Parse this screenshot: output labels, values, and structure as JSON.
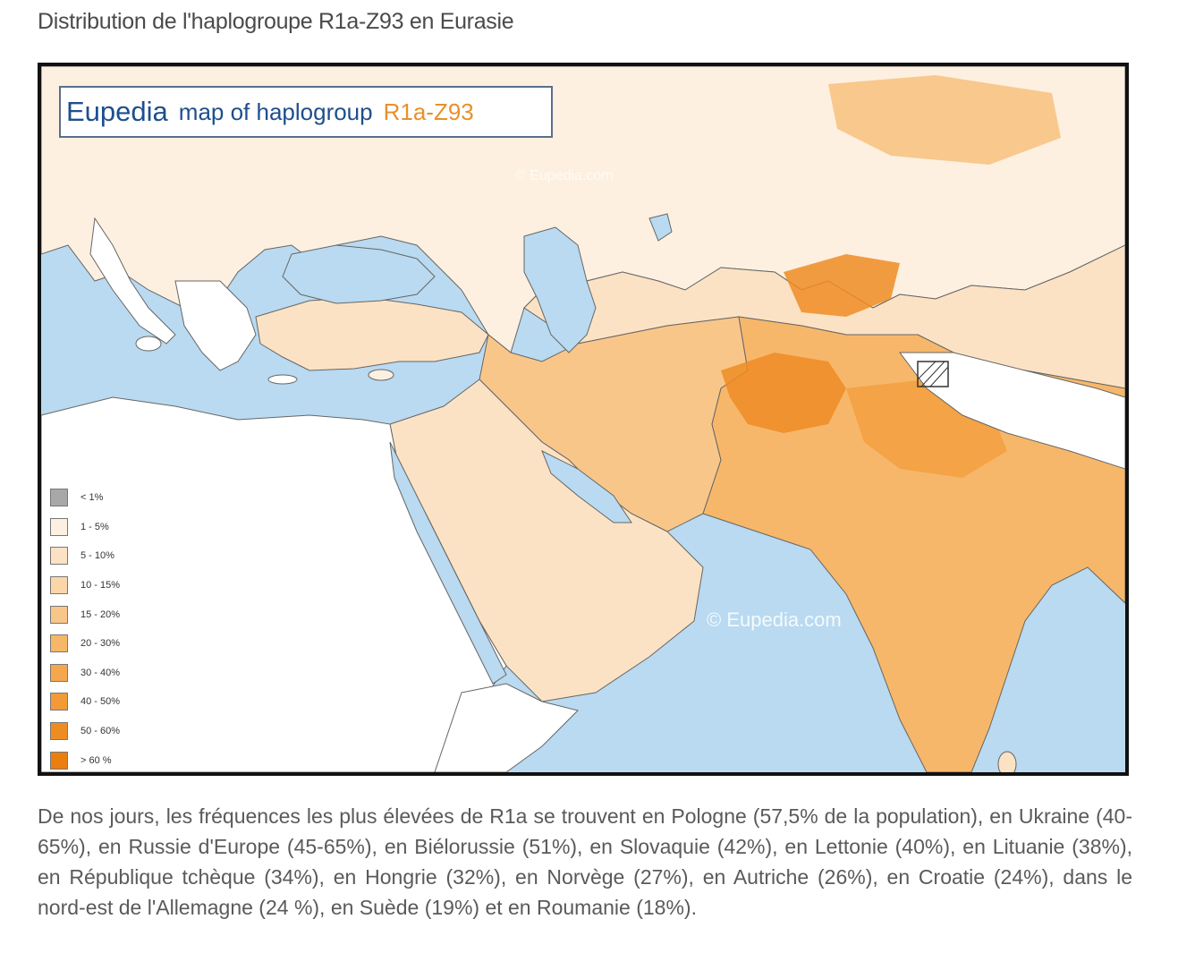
{
  "page_title": "Distribution de l'haplogroupe R1a-Z93 en Eurasie",
  "map": {
    "brand": {
      "name": "Eupedia",
      "text": "map of haplogroup",
      "haplogroup": "R1a-Z93"
    },
    "watermarks": [
      "© Eupedia.com",
      "© Eupedia.com"
    ],
    "legend": [
      {
        "label": "< 1%",
        "color": "#a8a8a8"
      },
      {
        "label": "1 - 5%",
        "color": "#fdf0e0"
      },
      {
        "label": "5 - 10%",
        "color": "#fce2c4"
      },
      {
        "label": "10 - 15%",
        "color": "#fbd6a8"
      },
      {
        "label": "15 - 20%",
        "color": "#f9c68a"
      },
      {
        "label": "20 - 30%",
        "color": "#f7b76a"
      },
      {
        "label": "30 - 40%",
        "color": "#f5a74e"
      },
      {
        "label": "40 - 50%",
        "color": "#f29a38"
      },
      {
        "label": "50 - 60%",
        "color": "#ee8c24"
      },
      {
        "label": "> 60 %",
        "color": "#ea7f10"
      }
    ],
    "colors": {
      "sea": "#b9daf0",
      "land_none": "#ffffff",
      "border": "#555555"
    }
  },
  "paragraph": "De nos jours, les fréquences les plus élevées de R1a se trouvent en Pologne (57,5% de la population), en Ukraine (40-65%), en Russie d'Europe (45-65%), en Biélorussie (51%), en Slovaquie (42%), en Lettonie (40%), en Lituanie (38%), en République tchèque (34%), en Hongrie (32%), en Norvège (27%), en Autriche (26%), en Croatie (24%), dans le nord-est de l'Allemagne (24 %), en Suède (19%) et en Roumanie (18%)."
}
